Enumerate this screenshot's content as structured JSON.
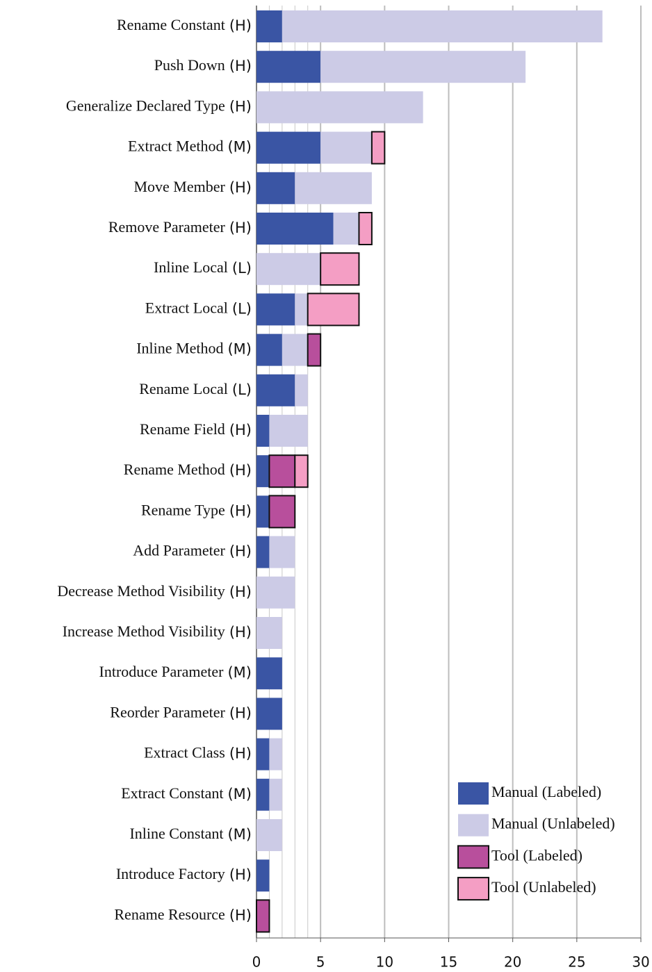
{
  "chart_data": {
    "type": "stacked_barh",
    "categories": [
      "Rename Constant",
      "Push Down",
      "Generalize Declared Type",
      "Extract Method",
      "Move Member",
      "Remove Parameter",
      "Inline Local",
      "Extract Local",
      "Inline Method",
      "Rename Local",
      "Rename Field",
      "Rename Method",
      "Rename Type",
      "Add Parameter",
      "Decrease Method Visibility",
      "Increase Method Visibility",
      "Introduce Parameter",
      "Reorder Parameter",
      "Extract Class",
      "Extract Constant",
      "Inline Constant",
      "Introduce Factory",
      "Rename Resource"
    ],
    "levels": [
      "(H)",
      "(H)",
      "(H)",
      "(M)",
      "(H)",
      "(H)",
      "(L)",
      "(L)",
      "(M)",
      "(L)",
      "(H)",
      "(H)",
      "(H)",
      "(H)",
      "(H)",
      "(H)",
      "(M)",
      "(H)",
      "(H)",
      "(M)",
      "(M)",
      "(H)",
      "(H)"
    ],
    "series": [
      {
        "name": "Manual (Labeled)",
        "color": "#3a55a4",
        "outline": false,
        "values": [
          2,
          5,
          0,
          5,
          3,
          6,
          0,
          3,
          2,
          3,
          1,
          1,
          1,
          1,
          0,
          0,
          2,
          2,
          1,
          1,
          0,
          1,
          0
        ]
      },
      {
        "name": "Manual (Unlabeled)",
        "color": "#cccbe6",
        "outline": false,
        "values": [
          25,
          16,
          13,
          4,
          6,
          2,
          5,
          1,
          2,
          1,
          3,
          0,
          0,
          2,
          3,
          2,
          0,
          0,
          1,
          1,
          2,
          0,
          0
        ]
      },
      {
        "name": "Tool (Labeled)",
        "color": "#b84f9c",
        "outline": true,
        "values": [
          0,
          0,
          0,
          0,
          0,
          0,
          0,
          0,
          1,
          0,
          0,
          2,
          2,
          0,
          0,
          0,
          0,
          0,
          0,
          0,
          0,
          0,
          1
        ]
      },
      {
        "name": "Tool (Unlabeled)",
        "color": "#f49ec4",
        "outline": true,
        "values": [
          0,
          0,
          0,
          1,
          0,
          1,
          3,
          4,
          0,
          0,
          0,
          1,
          0,
          0,
          0,
          0,
          0,
          0,
          0,
          0,
          0,
          0,
          0
        ]
      }
    ],
    "xlim": [
      0,
      30
    ],
    "xticks": [
      0,
      5,
      10,
      15,
      20,
      25,
      30
    ],
    "minor_xticks": [
      1,
      2,
      3,
      4
    ],
    "grid": true,
    "legend": "lower right"
  }
}
